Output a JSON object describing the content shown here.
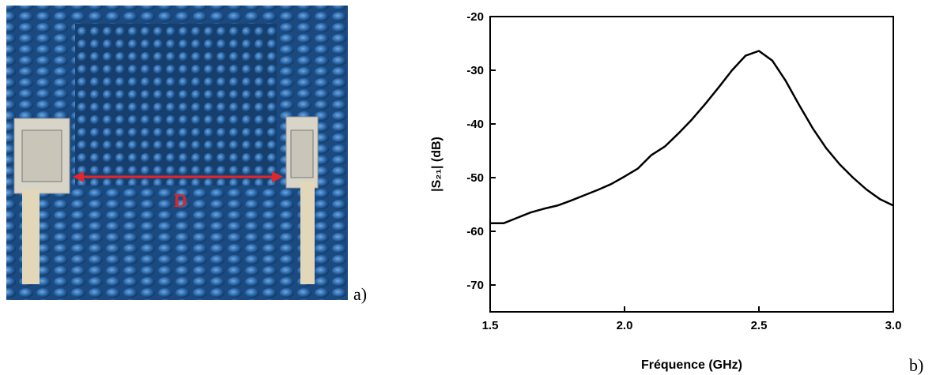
{
  "photo": {
    "annotation": "D",
    "caption": "a)"
  },
  "chart_data": {
    "type": "line",
    "caption": "b)",
    "x_label": "Fréquence  (GHz)",
    "y_label": "|S₂₁|  (dB)",
    "x": [
      1.5,
      1.55,
      1.6,
      1.65,
      1.7,
      1.75,
      1.8,
      1.85,
      1.9,
      1.95,
      2.0,
      2.05,
      2.1,
      2.15,
      2.2,
      2.25,
      2.3,
      2.35,
      2.4,
      2.45,
      2.5,
      2.55,
      2.6,
      2.65,
      2.7,
      2.75,
      2.8,
      2.85,
      2.9,
      2.95,
      3.0
    ],
    "values": [
      -58.5,
      -58.5,
      -57.5,
      -56.5,
      -55.8,
      -55.2,
      -54.3,
      -53.3,
      -52.3,
      -51.2,
      -49.8,
      -48.3,
      -45.8,
      -44.2,
      -41.8,
      -39.2,
      -36.3,
      -33.2,
      -30.0,
      -27.3,
      -26.4,
      -28.2,
      -32.0,
      -36.5,
      -40.8,
      -44.5,
      -47.5,
      -50.0,
      -52.2,
      -54.0,
      -55.2
    ],
    "color": "#000000",
    "xlim": [
      1.5,
      3.0
    ],
    "xticks": [
      1.5,
      {
        "value": 2,
        "label": "2.0"
      },
      2.5,
      {
        "value": 3,
        "label": "3.0"
      }
    ],
    "ylim": [
      -75,
      -20
    ],
    "yticks": [
      -70,
      -60,
      -50,
      -40,
      -30,
      -20
    ]
  }
}
